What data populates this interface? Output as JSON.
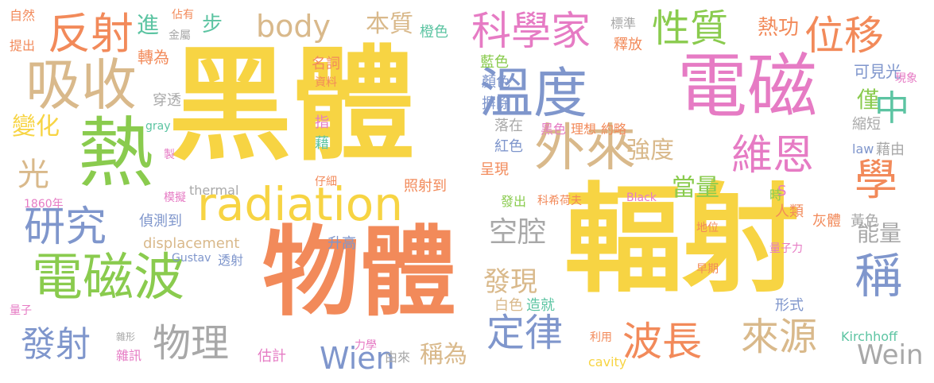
{
  "palette": {
    "yellow": "#f7d443",
    "orange": "#f28a5a",
    "pink": "#e67bc4",
    "blue": "#7f96cc",
    "green": "#8acb4e",
    "tan": "#d9b98b",
    "gray": "#a8a8a8",
    "teal": "#5cc4a2"
  },
  "words": [
    {
      "text": "黑體",
      "color": "yellow"
    },
    {
      "text": "輻射",
      "color": "yellow"
    },
    {
      "text": "物體",
      "color": "orange"
    },
    {
      "text": "電磁",
      "color": "pink"
    },
    {
      "text": "熱",
      "color": "green"
    },
    {
      "text": "radiation",
      "color": "yellow"
    },
    {
      "text": "吸收",
      "color": "tan"
    },
    {
      "text": "溫度",
      "color": "blue"
    },
    {
      "text": "電磁波",
      "color": "green"
    },
    {
      "text": "外來",
      "color": "tan"
    },
    {
      "text": "反射",
      "color": "orange"
    },
    {
      "text": "科學家",
      "color": "pink"
    },
    {
      "text": "性質",
      "color": "green"
    },
    {
      "text": "位移",
      "color": "orange"
    },
    {
      "text": "維恩",
      "color": "pink"
    },
    {
      "text": "學",
      "color": "orange"
    },
    {
      "text": "中",
      "color": "teal"
    },
    {
      "text": "研究",
      "color": "blue"
    },
    {
      "text": "稱",
      "color": "blue"
    },
    {
      "text": "發射",
      "color": "blue"
    },
    {
      "text": "物理",
      "color": "gray"
    },
    {
      "text": "定律",
      "color": "blue"
    },
    {
      "text": "波長",
      "color": "orange"
    },
    {
      "text": "來源",
      "color": "tan"
    },
    {
      "text": "body",
      "color": "tan"
    },
    {
      "text": "本質",
      "color": "tan"
    },
    {
      "text": "熱功",
      "color": "orange"
    },
    {
      "text": "空腔",
      "color": "gray"
    },
    {
      "text": "變化",
      "color": "yellow"
    },
    {
      "text": "光",
      "color": "tan"
    },
    {
      "text": "強度",
      "color": "tan"
    },
    {
      "text": "當量",
      "color": "green"
    },
    {
      "text": "能量",
      "color": "gray"
    },
    {
      "text": "Wein",
      "color": "gray"
    },
    {
      "text": "Wien",
      "color": "blue"
    },
    {
      "text": "稱為",
      "color": "tan"
    },
    {
      "text": "發現",
      "color": "tan"
    },
    {
      "text": "僅",
      "color": "green"
    },
    {
      "text": "可見光",
      "color": "blue"
    },
    {
      "text": "進",
      "color": "teal"
    },
    {
      "text": "步",
      "color": "teal"
    },
    {
      "text": "displacement",
      "color": "tan"
    },
    {
      "text": "自然",
      "color": "orange"
    },
    {
      "text": "佔有",
      "color": "orange"
    },
    {
      "text": "金屬",
      "color": "gray"
    },
    {
      "text": "提出",
      "color": "orange"
    },
    {
      "text": "橙色",
      "color": "teal"
    },
    {
      "text": "標準",
      "color": "gray"
    },
    {
      "text": "釋放",
      "color": "orange"
    },
    {
      "text": "轉為",
      "color": "orange"
    },
    {
      "text": "名詞",
      "color": "orange"
    },
    {
      "text": "資料",
      "color": "orange"
    },
    {
      "text": "藍色",
      "color": "green"
    },
    {
      "text": "顏色",
      "color": "blue"
    },
    {
      "text": "摒除",
      "color": "blue"
    },
    {
      "text": "穿透",
      "color": "gray"
    },
    {
      "text": "現象",
      "color": "pink"
    },
    {
      "text": "gray",
      "color": "teal"
    },
    {
      "text": "指",
      "color": "pink"
    },
    {
      "text": "藉",
      "color": "teal"
    },
    {
      "text": "落在",
      "color": "gray"
    },
    {
      "text": "紅色",
      "color": "blue"
    },
    {
      "text": "黑色",
      "color": "pink"
    },
    {
      "text": "理想",
      "color": "orange"
    },
    {
      "text": "約略",
      "color": "orange"
    },
    {
      "text": "縮短",
      "color": "gray"
    },
    {
      "text": "藉由",
      "color": "gray"
    },
    {
      "text": "law",
      "color": "blue"
    },
    {
      "text": "製",
      "color": "pink"
    },
    {
      "text": "呈現",
      "color": "orange"
    },
    {
      "text": "時",
      "color": "green"
    },
    {
      "text": "S",
      "color": "pink"
    },
    {
      "text": "人類",
      "color": "orange"
    },
    {
      "text": "仔細",
      "color": "orange"
    },
    {
      "text": "照射到",
      "color": "orange"
    },
    {
      "text": "thermal",
      "color": "gray"
    },
    {
      "text": "模擬",
      "color": "pink"
    },
    {
      "text": "1860年",
      "color": "pink"
    },
    {
      "text": "發出",
      "color": "green"
    },
    {
      "text": "科希荷夫",
      "color": "orange"
    },
    {
      "text": "Black",
      "color": "pink"
    },
    {
      "text": "灰體",
      "color": "orange"
    },
    {
      "text": "黃色",
      "color": "gray"
    },
    {
      "text": "偵測到",
      "color": "blue"
    },
    {
      "text": "升高",
      "color": "blue"
    },
    {
      "text": "地位",
      "color": "orange"
    },
    {
      "text": "Gustav",
      "color": "blue"
    },
    {
      "text": "透射",
      "color": "blue"
    },
    {
      "text": "量子力",
      "color": "pink"
    },
    {
      "text": "早期",
      "color": "orange"
    },
    {
      "text": "量子",
      "color": "pink"
    },
    {
      "text": "白色",
      "color": "tan"
    },
    {
      "text": "造就",
      "color": "teal"
    },
    {
      "text": "形式",
      "color": "blue"
    },
    {
      "text": "雜形",
      "color": "gray"
    },
    {
      "text": "雜訊",
      "color": "pink"
    },
    {
      "text": "估計",
      "color": "pink"
    },
    {
      "text": "力學",
      "color": "pink"
    },
    {
      "text": "由來",
      "color": "gray"
    },
    {
      "text": "利用",
      "color": "orange"
    },
    {
      "text": "Kirchhoff",
      "color": "teal"
    },
    {
      "text": "cavity",
      "color": "yellow"
    }
  ]
}
